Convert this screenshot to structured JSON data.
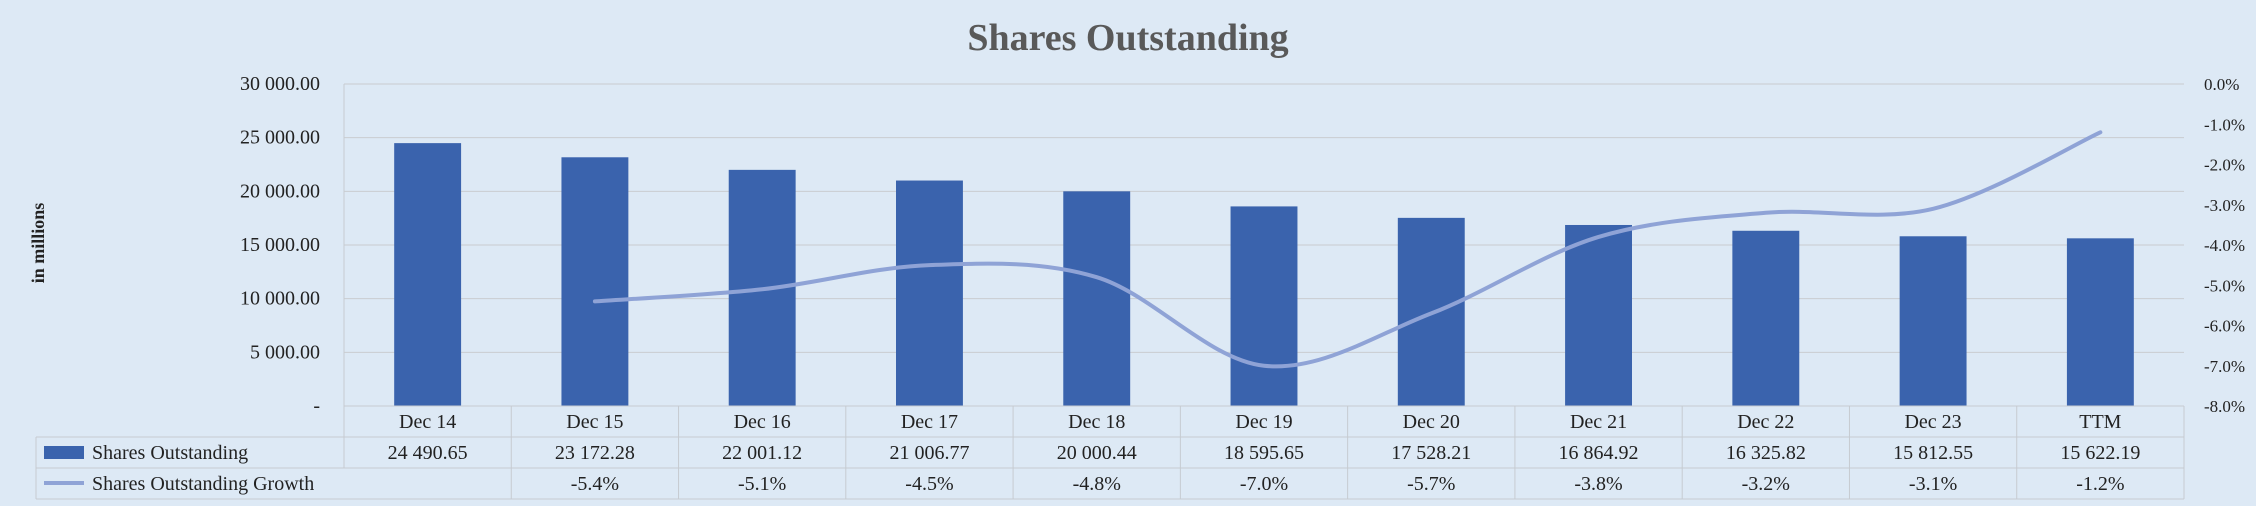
{
  "chart_data": {
    "type": "bar",
    "title": "Shares Outstanding",
    "ylabel": "in millions",
    "categories": [
      "Dec 14",
      "Dec 15",
      "Dec 16",
      "Dec 17",
      "Dec 18",
      "Dec 19",
      "Dec 20",
      "Dec 21",
      "Dec 22",
      "Dec 23",
      "TTM"
    ],
    "series": [
      {
        "name": "Shares Outstanding",
        "type": "bar",
        "axis": "left",
        "color": "#3a63ad",
        "values": [
          24490.65,
          23172.28,
          22001.12,
          21006.77,
          20000.44,
          18595.65,
          17528.21,
          16864.92,
          16325.82,
          15812.55,
          15622.19
        ],
        "labels": [
          "24 490.65",
          "23 172.28",
          "22 001.12",
          "21 006.77",
          "20 000.44",
          "18 595.65",
          "17 528.21",
          "16 864.92",
          "16 325.82",
          "15 812.55",
          "15 622.19"
        ]
      },
      {
        "name": "Shares Outstanding Growth",
        "type": "line",
        "axis": "right",
        "color": "#8fa3d6",
        "values": [
          null,
          -5.4,
          -5.1,
          -4.5,
          -4.8,
          -7.0,
          -5.7,
          -3.8,
          -3.2,
          -3.1,
          -1.2
        ],
        "labels": [
          "",
          "-5.4%",
          "-5.1%",
          "-4.5%",
          "-4.8%",
          "-7.0%",
          "-5.7%",
          "-3.8%",
          "-3.2%",
          "-3.1%",
          "-1.2%"
        ]
      }
    ],
    "left_axis": {
      "min": 0,
      "max": 30000,
      "ticks": [
        0,
        5000,
        10000,
        15000,
        20000,
        25000,
        30000
      ],
      "tick_labels": [
        "-",
        "5 000.00",
        "10 000.00",
        "15 000.00",
        "20 000.00",
        "25 000.00",
        "30 000.00"
      ]
    },
    "right_axis": {
      "min": -8,
      "max": 0,
      "ticks": [
        0,
        -1,
        -2,
        -3,
        -4,
        -5,
        -6,
        -7,
        -8
      ],
      "tick_labels": [
        "0.0%",
        "-1.0%",
        "-2.0%",
        "-3.0%",
        "-4.0%",
        "-5.0%",
        "-6.0%",
        "-7.0%",
        "-8.0%"
      ]
    },
    "grid": true,
    "legend": "data-table"
  }
}
